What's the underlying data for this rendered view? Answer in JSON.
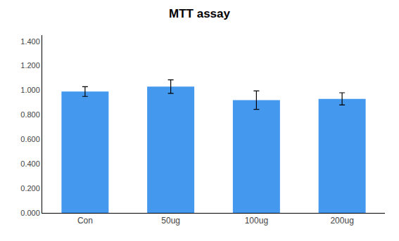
{
  "chart_data": {
    "type": "bar",
    "title": "MTT assay",
    "categories": [
      "Con",
      "50ug",
      "100ug",
      "200ug"
    ],
    "values": [
      0.99,
      1.03,
      0.92,
      0.93
    ],
    "errors": [
      0.04,
      0.055,
      0.075,
      0.05
    ],
    "color": "#4499EE",
    "ylim": [
      0.0,
      1.45
    ],
    "yticks": [
      {
        "value": 0.0,
        "label": "0.000"
      },
      {
        "value": 0.2,
        "label": "0.200"
      },
      {
        "value": 0.4,
        "label": "0.400"
      },
      {
        "value": 0.6,
        "label": "0.600"
      },
      {
        "value": 0.8,
        "label": "0.800"
      },
      {
        "value": 1.0,
        "label": "1.000"
      },
      {
        "value": 1.2,
        "label": "1.200"
      },
      {
        "value": 1.4,
        "label": "1.400"
      }
    ],
    "grid": false
  }
}
